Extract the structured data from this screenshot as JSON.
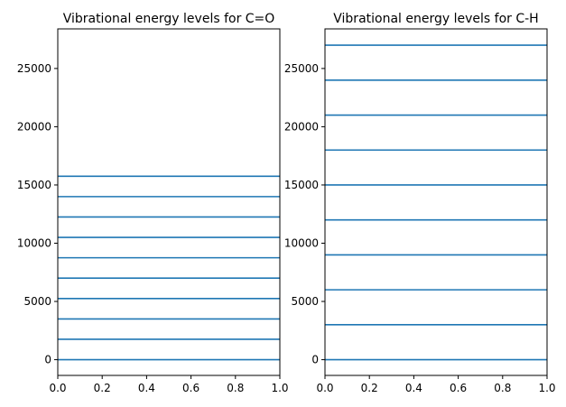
{
  "chart_data": [
    {
      "type": "line",
      "title": "Vibrational energy levels for C=O",
      "xlabel": "",
      "ylabel": "",
      "xlim": [
        0,
        1
      ],
      "ylim": [
        -1350,
        28400
      ],
      "x_ticks": [
        0.0,
        0.2,
        0.4,
        0.6,
        0.8,
        1.0
      ],
      "x_tick_labels": [
        "0.0",
        "0.2",
        "0.4",
        "0.6",
        "0.8",
        "1.0"
      ],
      "y_ticks": [
        0,
        5000,
        10000,
        15000,
        20000,
        25000
      ],
      "y_tick_labels": [
        "0",
        "5000",
        "10000",
        "15000",
        "20000",
        "25000"
      ],
      "grid": false,
      "color": "#1f77b4",
      "levels": [
        0,
        1750,
        3500,
        5250,
        7000,
        8750,
        10500,
        12250,
        14000,
        15750
      ]
    },
    {
      "type": "line",
      "title": "Vibrational energy levels for C-H",
      "xlabel": "",
      "ylabel": "",
      "xlim": [
        0,
        1
      ],
      "ylim": [
        -1350,
        28400
      ],
      "x_ticks": [
        0.0,
        0.2,
        0.4,
        0.6,
        0.8,
        1.0
      ],
      "x_tick_labels": [
        "0.0",
        "0.2",
        "0.4",
        "0.6",
        "0.8",
        "1.0"
      ],
      "y_ticks": [
        0,
        5000,
        10000,
        15000,
        20000,
        25000
      ],
      "y_tick_labels": [
        "0",
        "5000",
        "10000",
        "15000",
        "20000",
        "25000"
      ],
      "grid": false,
      "color": "#1f77b4",
      "levels": [
        0,
        3000,
        6000,
        9000,
        12000,
        15000,
        18000,
        21000,
        24000,
        27000
      ]
    }
  ]
}
